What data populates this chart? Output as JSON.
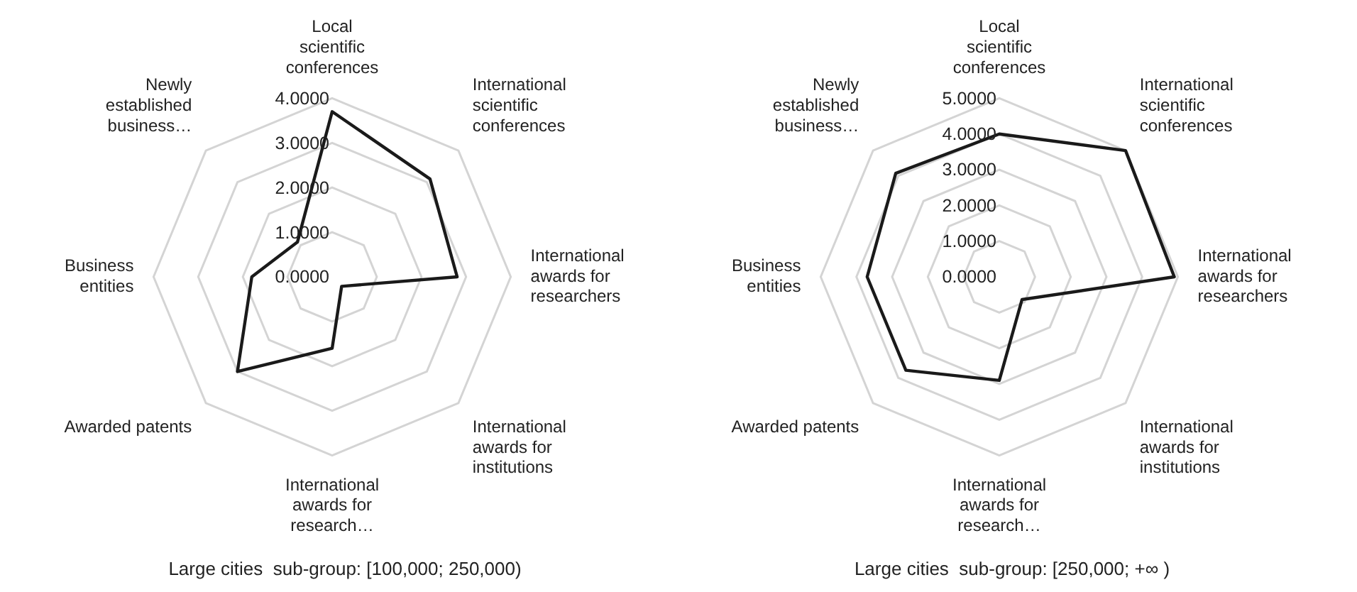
{
  "chart_data": [
    {
      "type": "radar",
      "title": "Large cities  sub-group: [100,000; 250,000)",
      "categories": [
        "Local scientific conferences",
        "International scientific conferences",
        "International awards for researchers",
        "International awards for institutions",
        "International awards for research…",
        "Awarded patents",
        "Business entities",
        "Newly established business…"
      ],
      "series": [
        {
          "color": "#1a1a1a",
          "values": [
            3.7,
            3.1,
            2.8,
            0.3,
            1.6,
            3.0,
            1.8,
            1.1
          ]
        }
      ],
      "ylim": [
        0,
        4
      ],
      "yticks": [
        {
          "value": 0,
          "label": "0.0000"
        },
        {
          "value": 1,
          "label": "1.0000"
        },
        {
          "value": 2,
          "label": "2.0000"
        },
        {
          "value": 3,
          "label": "3.0000"
        },
        {
          "value": 4,
          "label": "4.0000"
        }
      ],
      "grid": true,
      "marker": "none",
      "line_style": "solid"
    },
    {
      "type": "radar",
      "title": "Large cities  sub-group: [250,000; +∞ )",
      "categories": [
        "Local scientific conferences",
        "International scientific conferences",
        "International awards for researchers",
        "International awards for institutions",
        "International awards for research…",
        "Awarded patents",
        "Business entities",
        "Newly established business…"
      ],
      "series": [
        {
          "color": "#1a1a1a",
          "values": [
            4.0,
            5.0,
            4.9,
            0.9,
            2.9,
            3.7,
            3.7,
            4.1
          ]
        }
      ],
      "ylim": [
        0,
        5
      ],
      "yticks": [
        {
          "value": 0,
          "label": "0.0000"
        },
        {
          "value": 1,
          "label": "1.0000"
        },
        {
          "value": 2,
          "label": "2.0000"
        },
        {
          "value": 3,
          "label": "3.0000"
        },
        {
          "value": 4,
          "label": "4.0000"
        },
        {
          "value": 5,
          "label": "5.0000"
        }
      ],
      "grid": true,
      "marker": "none",
      "line_style": "solid"
    }
  ]
}
